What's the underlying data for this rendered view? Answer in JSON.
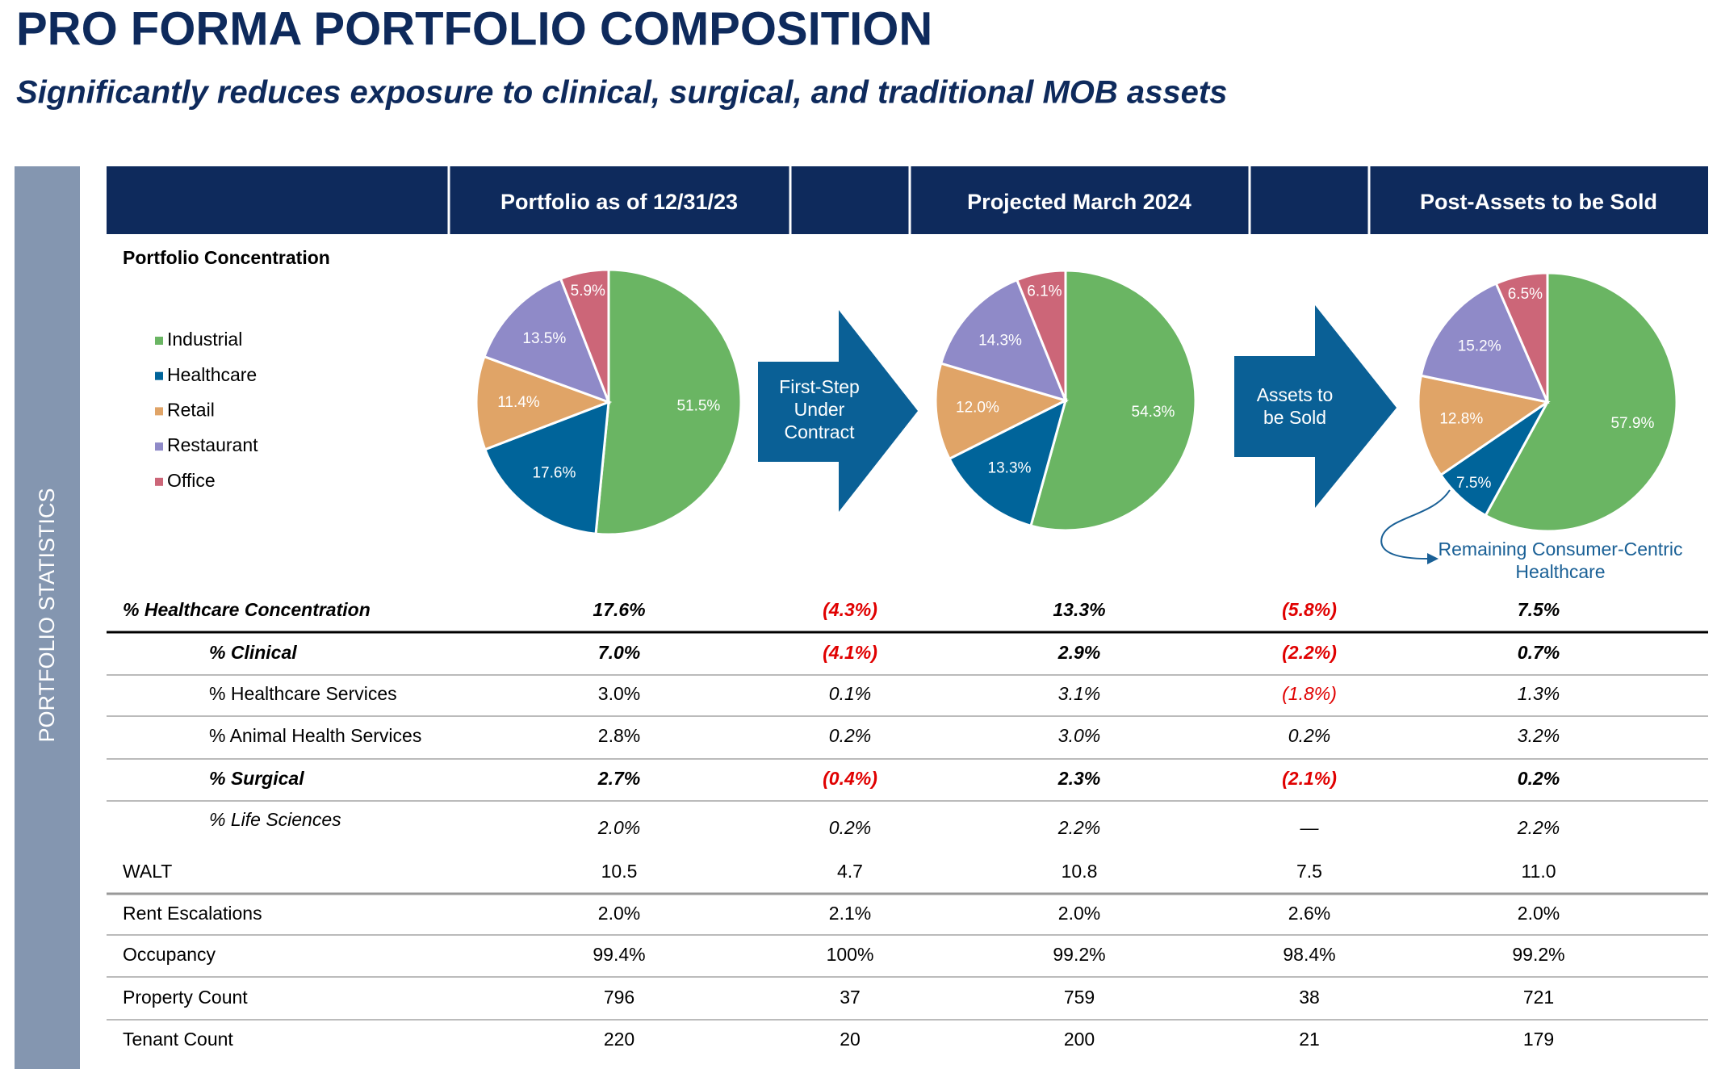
{
  "title": "PRO FORMA PORTFOLIO COMPOSITION",
  "subtitle": "Significantly reduces exposure to clinical, surgical, and traditional MOB assets",
  "side_label": "PORTFOLIO STATISTICS",
  "columns": [
    "Portfolio as of 12/31/23",
    "Projected March 2024",
    "Post-Assets to be Sold"
  ],
  "concentration_label": "Portfolio Concentration",
  "legend": {
    "labels": [
      "Industrial",
      "Healthcare",
      "Retail",
      "Restaurant",
      "Office"
    ],
    "colors": [
      "#6ab563",
      "#00649a",
      "#e0a467",
      "#8f8ac8",
      "#cc6678"
    ]
  },
  "chart_data": [
    {
      "type": "pie",
      "values": [
        51.5,
        17.6,
        11.4,
        13.5,
        5.9
      ],
      "value_labels": [
        "51.5%",
        "17.6%",
        "11.4%",
        "13.5%",
        "5.9%"
      ]
    },
    {
      "type": "pie",
      "values": [
        54.3,
        13.3,
        12.0,
        14.3,
        6.1
      ],
      "value_labels": [
        "54.3%",
        "13.3%",
        "12.0%",
        "14.3%",
        "6.1%"
      ]
    },
    {
      "type": "pie",
      "values": [
        57.9,
        7.5,
        12.8,
        15.2,
        6.5
      ],
      "value_labels": [
        "57.9%",
        "7.5%",
        "12.8%",
        "15.2%",
        "6.5%"
      ]
    }
  ],
  "arrows": [
    {
      "lines": [
        "First-Step",
        "Under",
        "Contract"
      ]
    },
    {
      "lines": [
        "Assets to",
        "be Sold"
      ]
    }
  ],
  "annotation": {
    "lines": [
      "Remaining Consumer-Centric",
      "Healthcare"
    ]
  },
  "table": {
    "rows": [
      {
        "label": "% Healthcare Concentration",
        "cells": [
          "17.6%",
          "(4.3%)",
          "13.3%",
          "(5.8%)",
          "7.5%"
        ]
      },
      {
        "label": "% Clinical",
        "cells": [
          "7.0%",
          "(4.1%)",
          "2.9%",
          "(2.2%)",
          "0.7%"
        ]
      },
      {
        "label": "% Healthcare Services",
        "cells": [
          "3.0%",
          "0.1%",
          "3.1%",
          "(1.8%)",
          "1.3%"
        ]
      },
      {
        "label": "% Animal Health Services",
        "cells": [
          "2.8%",
          "0.2%",
          "3.0%",
          "0.2%",
          "3.2%"
        ]
      },
      {
        "label": "% Surgical",
        "cells": [
          "2.7%",
          "(0.4%)",
          "2.3%",
          "(2.1%)",
          "0.2%"
        ]
      },
      {
        "label": "% Life Sciences",
        "cells": [
          "2.0%",
          "0.2%",
          "2.2%",
          "—",
          "2.2%"
        ]
      },
      {
        "label": "WALT",
        "cells": [
          "10.5",
          "4.7",
          "10.8",
          "7.5",
          "11.0"
        ]
      },
      {
        "label": "Rent Escalations",
        "cells": [
          "2.0%",
          "2.1%",
          "2.0%",
          "2.6%",
          "2.0%"
        ]
      },
      {
        "label": "Occupancy",
        "cells": [
          "99.4%",
          "100%",
          "99.2%",
          "98.4%",
          "99.2%"
        ]
      },
      {
        "label": "Property Count",
        "cells": [
          "796",
          "37",
          "759",
          "38",
          "721"
        ]
      },
      {
        "label": "Tenant Count",
        "cells": [
          "220",
          "20",
          "200",
          "21",
          "179"
        ]
      }
    ]
  }
}
